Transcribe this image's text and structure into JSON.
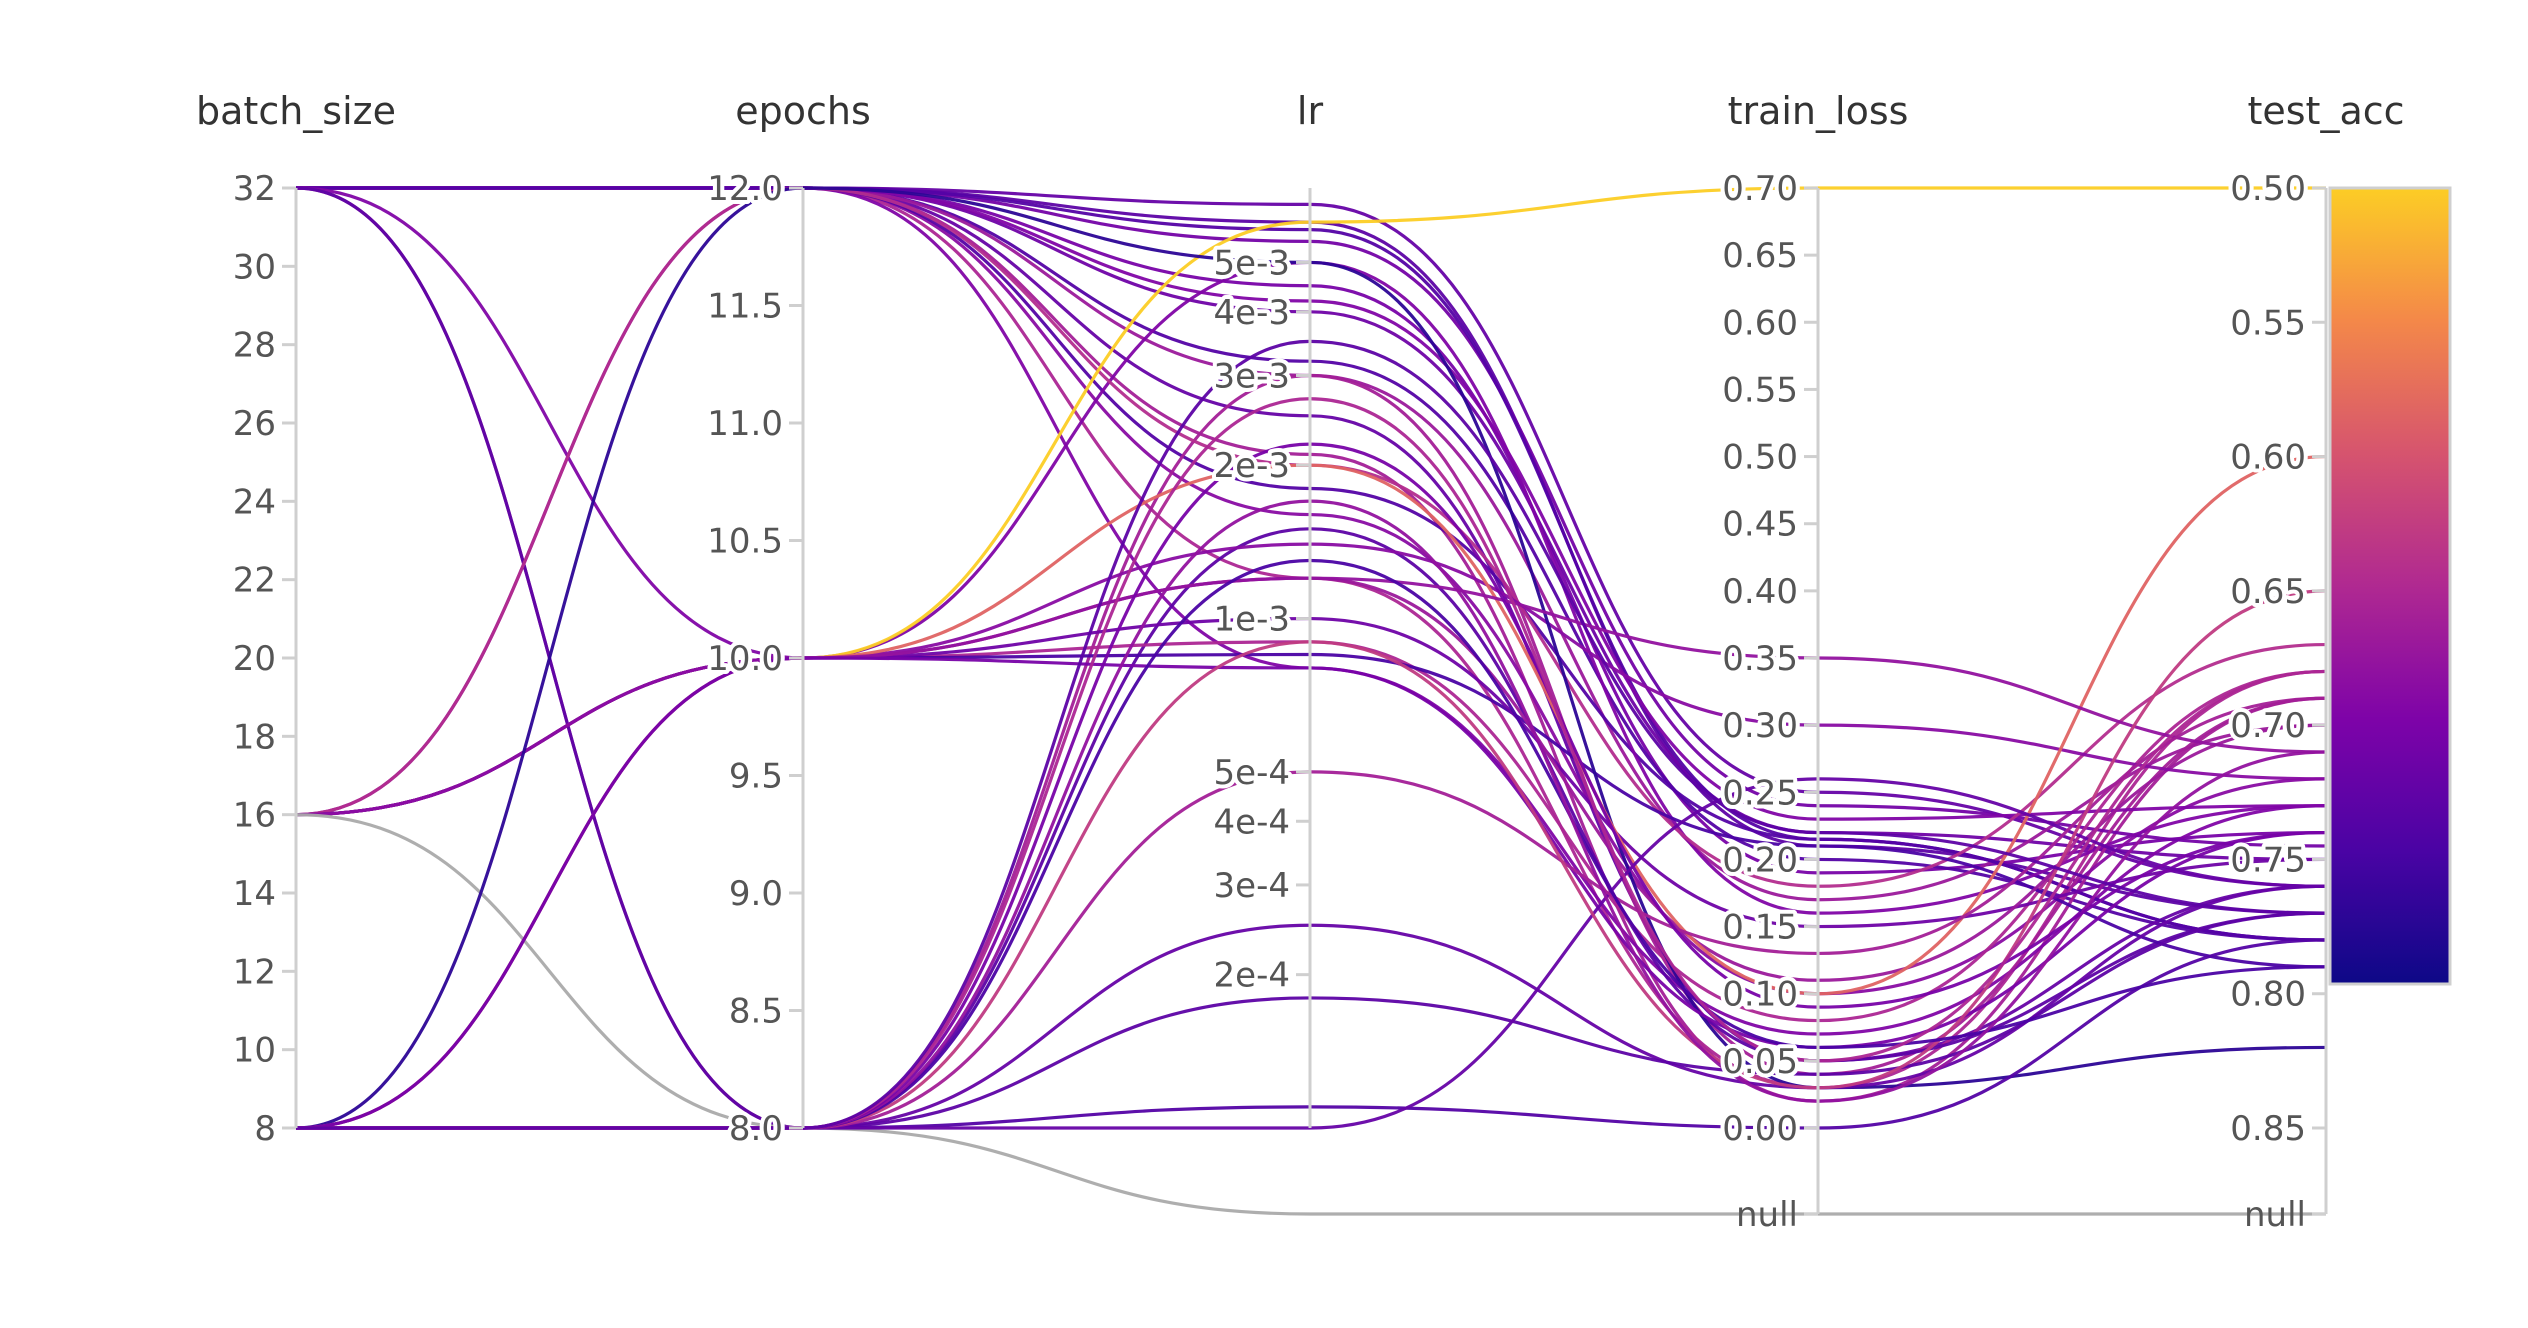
{
  "chart_data": {
    "type": "parallel_coordinates",
    "dimensions": [
      {
        "key": "batch_size",
        "label": "batch_size",
        "scale": "linear",
        "range": [
          8,
          32
        ],
        "ticks": [
          "8",
          "10",
          "12",
          "14",
          "16",
          "18",
          "20",
          "22",
          "24",
          "26",
          "28",
          "30",
          "32"
        ]
      },
      {
        "key": "epochs",
        "label": "epochs",
        "scale": "linear",
        "range": [
          8,
          12
        ],
        "ticks": [
          "8.0",
          "8.5",
          "9.0",
          "9.5",
          "10.0",
          "10.5",
          "11.0",
          "11.5",
          "12.0"
        ]
      },
      {
        "key": "lr",
        "label": "lr",
        "scale": "log",
        "range": [
          0.0001,
          0.007
        ],
        "ticks": [
          "2e-4",
          "3e-4",
          "4e-4",
          "5e-4",
          "1e-3",
          "2e-3",
          "3e-3",
          "4e-3",
          "5e-3"
        ],
        "tick_values": [
          0.0002,
          0.0003,
          0.0004,
          0.0005,
          0.001,
          0.002,
          0.003,
          0.004,
          0.005
        ],
        "null_label": ""
      },
      {
        "key": "train_loss",
        "label": "train_loss",
        "scale": "linear",
        "range": [
          0,
          0.7
        ],
        "ticks": [
          "0.00",
          "0.05",
          "0.10",
          "0.15",
          "0.20",
          "0.25",
          "0.30",
          "0.35",
          "0.40",
          "0.45",
          "0.50",
          "0.55",
          "0.60",
          "0.65",
          "0.70"
        ],
        "null_label": "null"
      },
      {
        "key": "test_acc",
        "label": "test_acc",
        "scale": "linear",
        "range": [
          0.5,
          0.85
        ],
        "reversed": true,
        "ticks": [
          "0.50",
          "0.55",
          "0.60",
          "0.65",
          "0.70",
          "0.75",
          "0.80",
          "0.85"
        ],
        "null_label": "null"
      }
    ],
    "colorbar": {
      "dimension": "test_acc",
      "colors": [
        "#fccd25",
        "#f48849",
        "#d6546e",
        "#b02991",
        "#7e03a8",
        "#4a03a4",
        "#0d0887"
      ]
    },
    "grid": false,
    "legend": "colorbar-right",
    "runs": [
      {
        "batch_size": 32,
        "epochs": 12,
        "lr": 0.0065,
        "train_loss": 0.25,
        "test_acc": 0.76
      },
      {
        "batch_size": 32,
        "epochs": 12,
        "lr": 0.006,
        "train_loss": 0.21,
        "test_acc": 0.77
      },
      {
        "batch_size": 32,
        "epochs": 12,
        "lr": 0.0045,
        "train_loss": 0.19,
        "test_acc": 0.74
      },
      {
        "batch_size": 32,
        "epochs": 12,
        "lr": 0.004,
        "train_loss": 0.22,
        "test_acc": 0.75
      },
      {
        "batch_size": 32,
        "epochs": 12,
        "lr": 0.0032,
        "train_loss": 0.2,
        "test_acc": 0.78
      },
      {
        "batch_size": 32,
        "epochs": 12,
        "lr": 0.0025,
        "train_loss": 0.05,
        "test_acc": 0.76
      },
      {
        "batch_size": 32,
        "epochs": 12,
        "lr": 0.0021,
        "train_loss": 0.02,
        "test_acc": 0.69
      },
      {
        "batch_size": 32,
        "epochs": 12,
        "lr": 0.0016,
        "train_loss": 0.1,
        "test_acc": 0.72
      },
      {
        "batch_size": 32,
        "epochs": 12,
        "lr": 0.0012,
        "train_loss": 0.03,
        "test_acc": 0.68
      },
      {
        "batch_size": 32,
        "epochs": 12,
        "lr": 0.0008,
        "train_loss": 0.07,
        "test_acc": 0.73
      },
      {
        "batch_size": 32,
        "epochs": 12,
        "lr": 0.0055,
        "train_loss": 0.24,
        "test_acc": 0.745
      },
      {
        "batch_size": 32,
        "epochs": 12,
        "lr": 0.003,
        "train_loss": 0.17,
        "test_acc": 0.7
      },
      {
        "batch_size": 32,
        "epochs": 12,
        "lr": 0.0058,
        "train_loss": 0.215,
        "test_acc": 0.78
      },
      {
        "batch_size": 32,
        "epochs": 12,
        "lr": 0.0018,
        "train_loss": 0.215,
        "test_acc": 0.78
      },
      {
        "batch_size": 32,
        "epochs": 10,
        "lr": 0.005,
        "train_loss": 0.16,
        "test_acc": 0.73
      },
      {
        "batch_size": 32,
        "epochs": 8,
        "lr": 0.003,
        "train_loss": 0.04,
        "test_acc": 0.69
      },
      {
        "batch_size": 32,
        "epochs": 8,
        "lr": 0.0015,
        "train_loss": 0.05,
        "test_acc": 0.77
      },
      {
        "batch_size": 16,
        "epochs": 12,
        "lr": 0.0042,
        "train_loss": 0.23,
        "test_acc": 0.73
      },
      {
        "batch_size": 16,
        "epochs": 12,
        "lr": 0.002,
        "train_loss": 0.18,
        "test_acc": 0.67
      },
      {
        "batch_size": 16,
        "epochs": 10,
        "lr": 0.006,
        "train_loss": 0.7,
        "test_acc": 0.5
      },
      {
        "batch_size": 16,
        "epochs": 10,
        "lr": 0.0009,
        "train_loss": 0.08,
        "test_acc": 0.68
      },
      {
        "batch_size": 16,
        "epochs": 10,
        "lr": 0.00085,
        "train_loss": 0.21,
        "test_acc": 0.79
      },
      {
        "batch_size": 16,
        "epochs": 10,
        "lr": 0.001,
        "train_loss": 0.15,
        "test_acc": 0.75
      },
      {
        "batch_size": 16,
        "epochs": 10,
        "lr": 0.0012,
        "train_loss": 0.11,
        "test_acc": 0.7
      },
      {
        "batch_size": 16,
        "epochs": 10,
        "lr": 0.0014,
        "train_loss": 0.3,
        "test_acc": 0.72
      },
      {
        "batch_size": 16,
        "epochs": 8,
        "lr": null,
        "train_loss": null,
        "test_acc": null
      },
      {
        "batch_size": 8,
        "epochs": 12,
        "lr": 0.005,
        "train_loss": 0.03,
        "test_acc": 0.82
      },
      {
        "batch_size": 8,
        "epochs": 10,
        "lr": 0.002,
        "train_loss": 0.1,
        "test_acc": 0.6
      },
      {
        "batch_size": 8,
        "epochs": 10,
        "lr": 0.0012,
        "train_loss": 0.35,
        "test_acc": 0.71
      },
      {
        "batch_size": 8,
        "epochs": 10,
        "lr": 0.0008,
        "train_loss": 0.06,
        "test_acc": 0.74
      },
      {
        "batch_size": 8,
        "epochs": 8,
        "lr": 0.00025,
        "train_loss": 0.03,
        "test_acc": 0.76
      },
      {
        "batch_size": 8,
        "epochs": 8,
        "lr": 0.00018,
        "train_loss": 0.04,
        "test_acc": 0.77
      },
      {
        "batch_size": 8,
        "epochs": 8,
        "lr": 0.00011,
        "train_loss": 0.0,
        "test_acc": 0.78
      },
      {
        "batch_size": 8,
        "epochs": 8,
        "lr": 0.0001,
        "train_loss": 0.26,
        "test_acc": 0.76
      },
      {
        "batch_size": 8,
        "epochs": 8,
        "lr": 0.0005,
        "train_loss": 0.13,
        "test_acc": 0.69
      },
      {
        "batch_size": 8,
        "epochs": 8,
        "lr": 0.0009,
        "train_loss": 0.03,
        "test_acc": 0.65
      },
      {
        "batch_size": 8,
        "epochs": 8,
        "lr": 0.0013,
        "train_loss": 0.06,
        "test_acc": 0.79
      },
      {
        "batch_size": 8,
        "epochs": 8,
        "lr": 0.0017,
        "train_loss": 0.02,
        "test_acc": 0.71
      },
      {
        "batch_size": 8,
        "epochs": 8,
        "lr": 0.0022,
        "train_loss": 0.09,
        "test_acc": 0.74
      },
      {
        "batch_size": 8,
        "epochs": 8,
        "lr": 0.0027,
        "train_loss": 0.05,
        "test_acc": 0.68
      },
      {
        "batch_size": 8,
        "epochs": 8,
        "lr": 0.0035,
        "train_loss": 0.22,
        "test_acc": 0.77
      }
    ]
  }
}
